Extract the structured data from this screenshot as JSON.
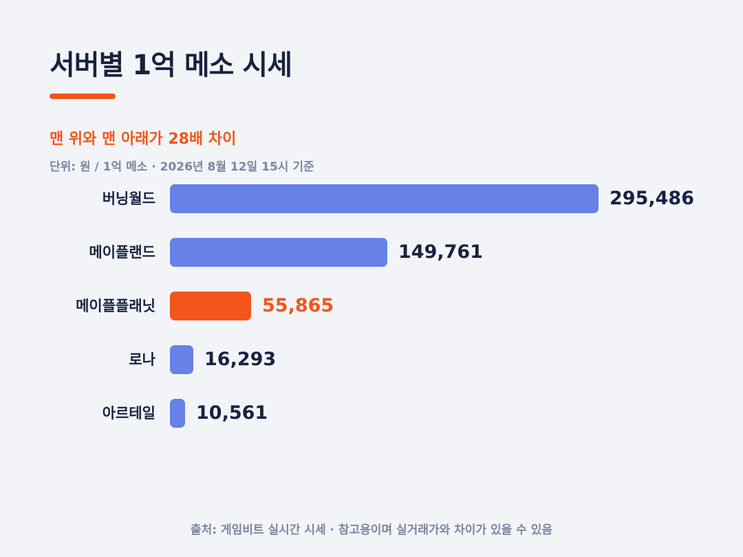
{
  "title": "서버별 1억 메소 시세",
  "subtitle": "맨 위와 맨 아래가 28배 차이",
  "unit_note": "단위: 원 / 1억 메소 · 2026년 8월 12일 15시 기준",
  "source": "출처: 게임비트 실시간 시세 · 참고용이며 실거래가와 차이가 있을 수 있음",
  "colors": {
    "bar": "#6682e6",
    "highlight": "#f2561d",
    "text": "#18223f",
    "muted": "#7c86a0",
    "background": "#f2f4f8"
  },
  "chart_data": {
    "type": "bar",
    "orientation": "horizontal",
    "categories": [
      "버닝월드",
      "메이플랜드",
      "메이플플래닛",
      "로나",
      "아르테일"
    ],
    "values": [
      295486,
      149761,
      55865,
      16293,
      10561
    ],
    "value_labels": [
      "295,486",
      "149,761",
      "55,865",
      "16,293",
      "10,561"
    ],
    "highlight": "메이플플래닛",
    "xlim": [
      0,
      295486
    ]
  }
}
